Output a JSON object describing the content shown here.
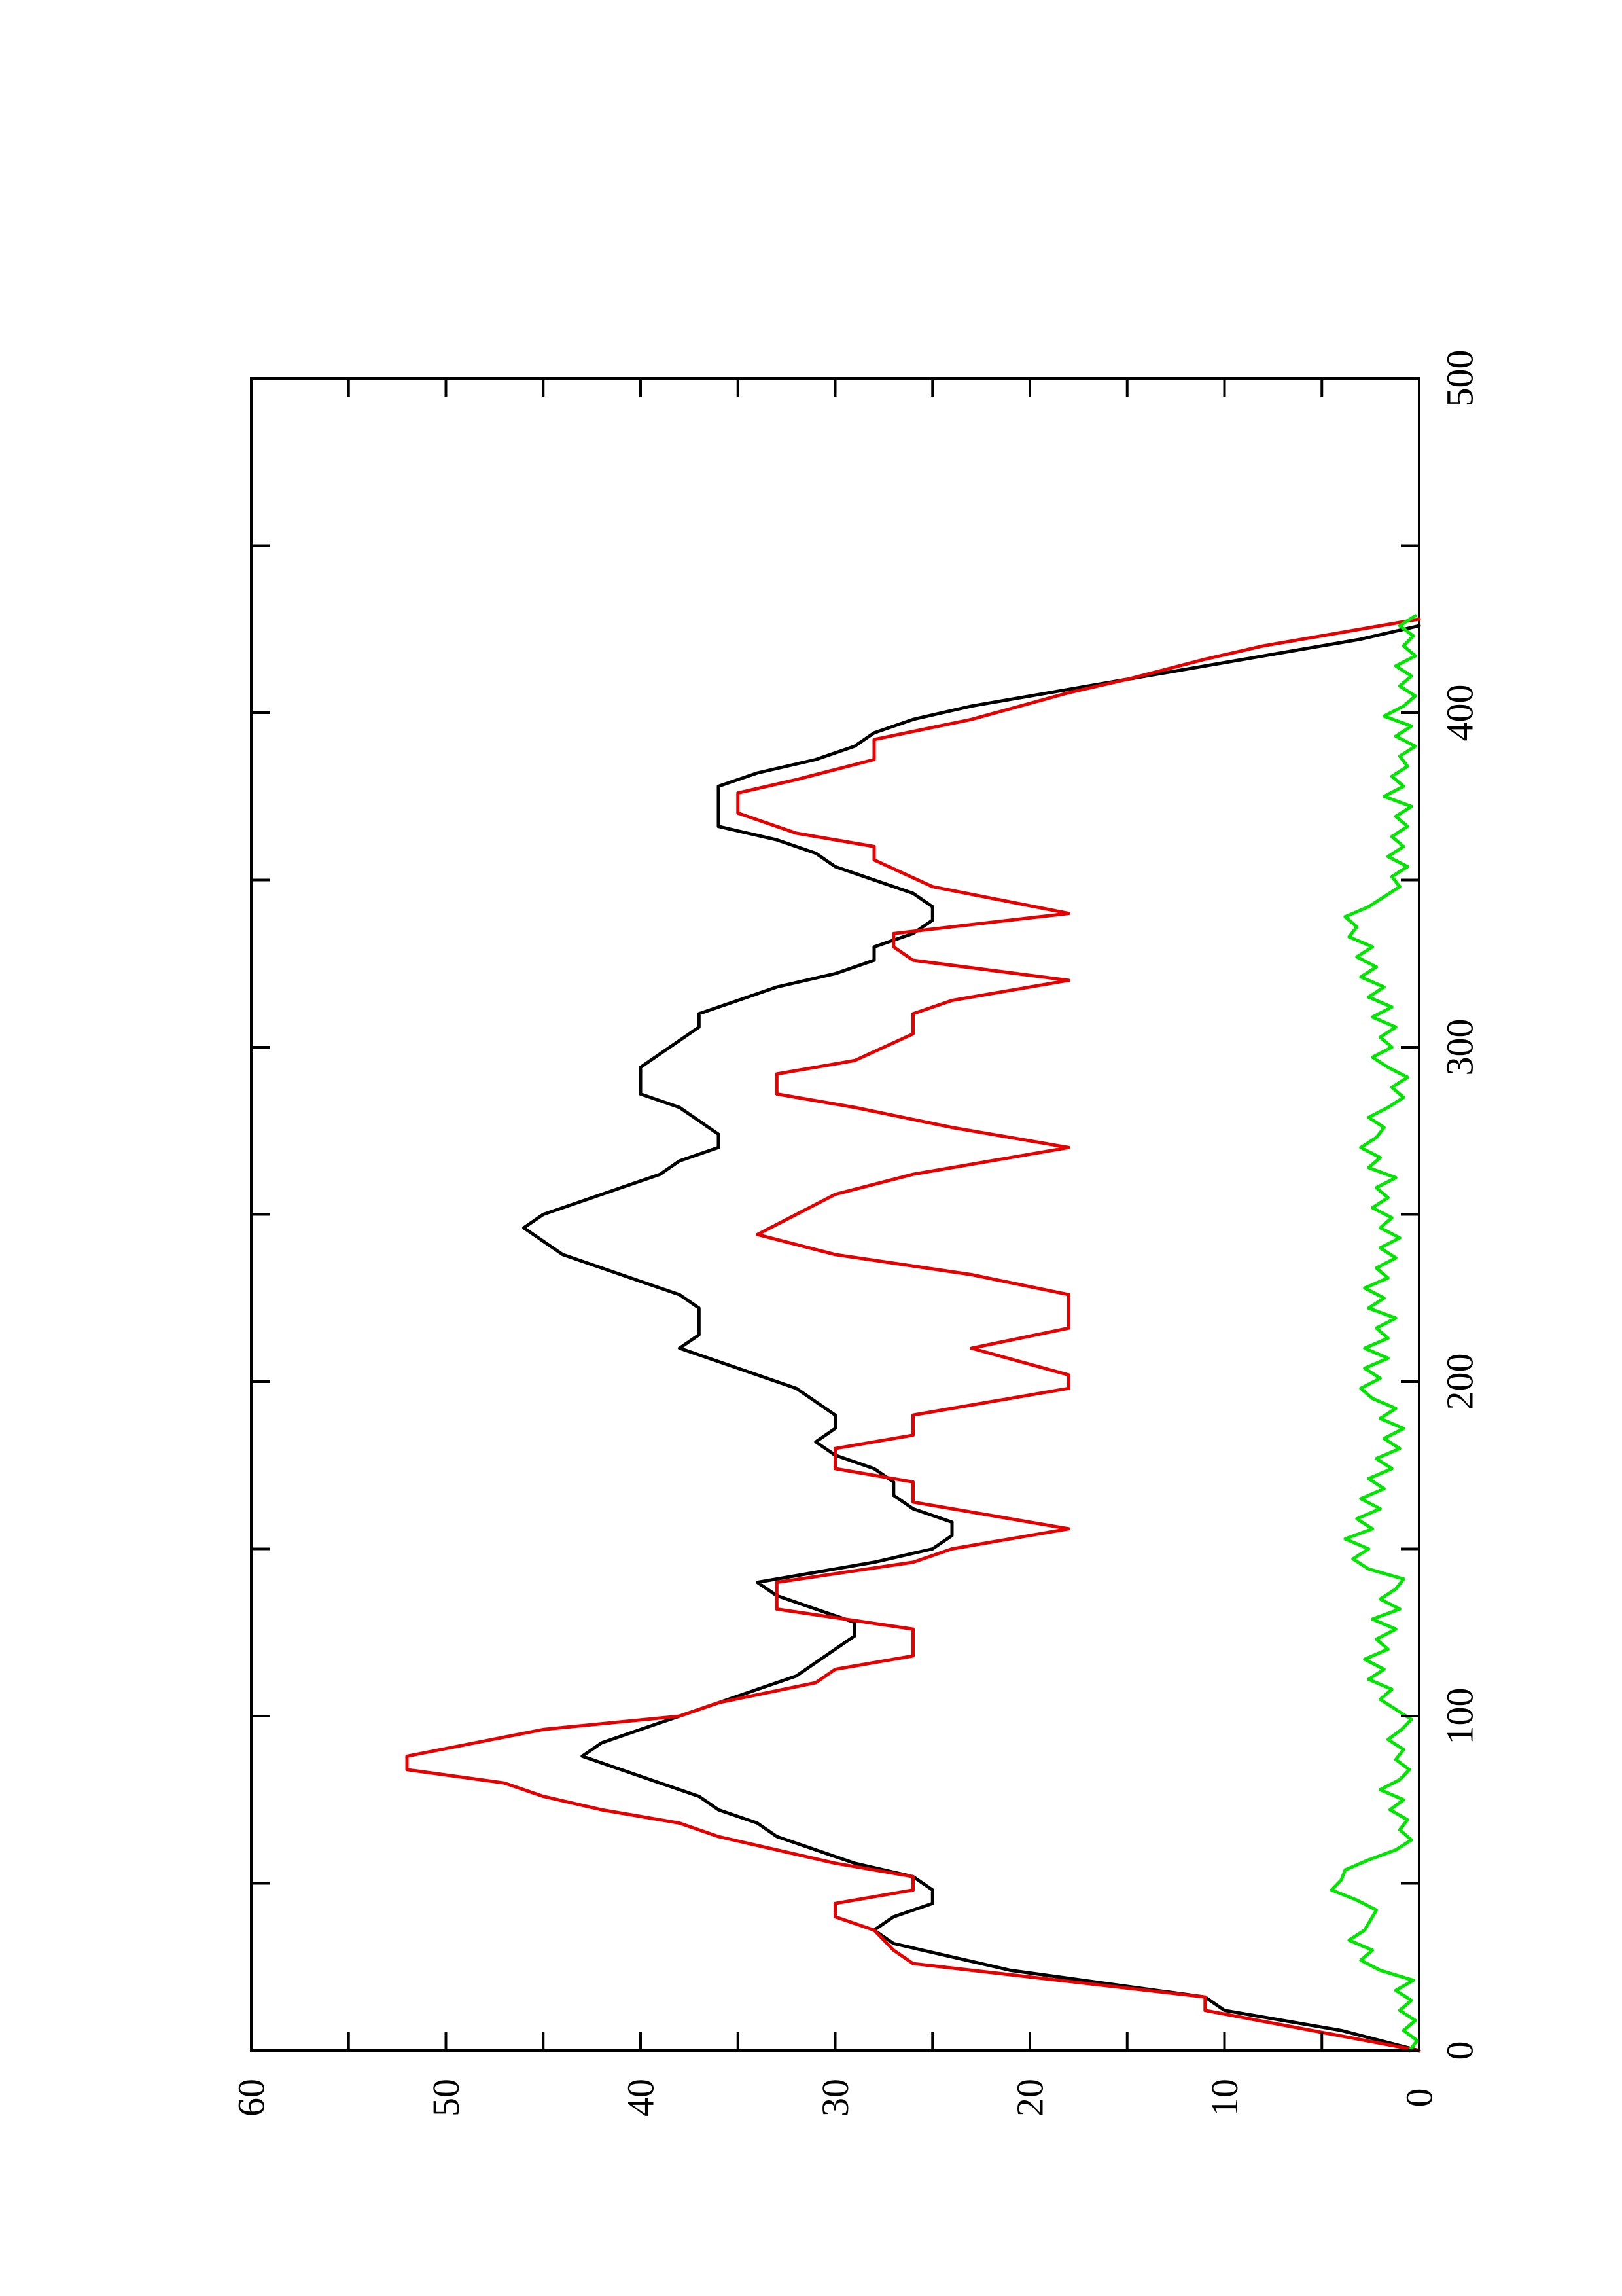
{
  "chart_data": {
    "type": "line",
    "title": "",
    "xlabel": "",
    "ylabel": "",
    "xlim": [
      0,
      500
    ],
    "ylim": [
      0,
      60
    ],
    "x_ticks": [
      0,
      100,
      200,
      300,
      400,
      500
    ],
    "y_ticks": [
      0,
      10,
      20,
      30,
      40,
      50,
      60
    ],
    "x_tick_labels": [
      "0",
      "100",
      "200",
      "300",
      "400",
      "500"
    ],
    "y_tick_labels": [
      "0",
      "10",
      "20",
      "30",
      "40",
      "50",
      "60"
    ],
    "grid": false,
    "legend": "none",
    "orientation": "page rotated 90 degrees counter-clockwise",
    "series": [
      {
        "color": "#000000",
        "points": [
          [
            0,
            0
          ],
          [
            6,
            4
          ],
          [
            12,
            10
          ],
          [
            16,
            11
          ],
          [
            20,
            16
          ],
          [
            24,
            21
          ],
          [
            28,
            24
          ],
          [
            32,
            27
          ],
          [
            36,
            28
          ],
          [
            40,
            27
          ],
          [
            44,
            25
          ],
          [
            48,
            25
          ],
          [
            52,
            26
          ],
          [
            56,
            29
          ],
          [
            60,
            31
          ],
          [
            64,
            33
          ],
          [
            68,
            34
          ],
          [
            72,
            36
          ],
          [
            76,
            37
          ],
          [
            80,
            39
          ],
          [
            84,
            41
          ],
          [
            88,
            43
          ],
          [
            92,
            42
          ],
          [
            96,
            40
          ],
          [
            100,
            38
          ],
          [
            104,
            36
          ],
          [
            108,
            34
          ],
          [
            112,
            32
          ],
          [
            116,
            31
          ],
          [
            120,
            30
          ],
          [
            124,
            29
          ],
          [
            128,
            29
          ],
          [
            132,
            31
          ],
          [
            136,
            33
          ],
          [
            140,
            34
          ],
          [
            142,
            32
          ],
          [
            146,
            28
          ],
          [
            150,
            25
          ],
          [
            154,
            24
          ],
          [
            158,
            24
          ],
          [
            162,
            26
          ],
          [
            166,
            27
          ],
          [
            170,
            27
          ],
          [
            174,
            28
          ],
          [
            178,
            30
          ],
          [
            182,
            31
          ],
          [
            186,
            30
          ],
          [
            190,
            30
          ],
          [
            194,
            31
          ],
          [
            198,
            32
          ],
          [
            202,
            34
          ],
          [
            206,
            36
          ],
          [
            210,
            38
          ],
          [
            214,
            37
          ],
          [
            218,
            37
          ],
          [
            222,
            37
          ],
          [
            226,
            38
          ],
          [
            230,
            40
          ],
          [
            234,
            42
          ],
          [
            238,
            44
          ],
          [
            242,
            45
          ],
          [
            246,
            46
          ],
          [
            250,
            45
          ],
          [
            254,
            43
          ],
          [
            258,
            41
          ],
          [
            262,
            39
          ],
          [
            266,
            38
          ],
          [
            270,
            36
          ],
          [
            274,
            36
          ],
          [
            278,
            37
          ],
          [
            282,
            38
          ],
          [
            286,
            40
          ],
          [
            290,
            40
          ],
          [
            294,
            40
          ],
          [
            298,
            39
          ],
          [
            302,
            38
          ],
          [
            306,
            37
          ],
          [
            310,
            37
          ],
          [
            314,
            35
          ],
          [
            318,
            33
          ],
          [
            322,
            30
          ],
          [
            326,
            28
          ],
          [
            330,
            28
          ],
          [
            334,
            26
          ],
          [
            338,
            25
          ],
          [
            342,
            25
          ],
          [
            346,
            26
          ],
          [
            350,
            28
          ],
          [
            354,
            30
          ],
          [
            358,
            31
          ],
          [
            362,
            33
          ],
          [
            366,
            36
          ],
          [
            370,
            36
          ],
          [
            374,
            36
          ],
          [
            378,
            36
          ],
          [
            382,
            34
          ],
          [
            386,
            31
          ],
          [
            390,
            29
          ],
          [
            394,
            28
          ],
          [
            398,
            26
          ],
          [
            402,
            23
          ],
          [
            406,
            19
          ],
          [
            410,
            15
          ],
          [
            414,
            11
          ],
          [
            418,
            7
          ],
          [
            422,
            3
          ],
          [
            426,
            0
          ]
        ]
      },
      {
        "color": "#e60000",
        "points": [
          [
            0,
            0
          ],
          [
            12,
            11
          ],
          [
            16,
            11
          ],
          [
            26,
            26
          ],
          [
            30,
            27
          ],
          [
            36,
            28
          ],
          [
            40,
            30
          ],
          [
            44,
            30
          ],
          [
            48,
            26
          ],
          [
            52,
            26
          ],
          [
            56,
            30
          ],
          [
            60,
            33
          ],
          [
            64,
            36
          ],
          [
            68,
            38
          ],
          [
            72,
            42
          ],
          [
            76,
            45
          ],
          [
            80,
            47
          ],
          [
            84,
            52
          ],
          [
            88,
            52
          ],
          [
            96,
            45
          ],
          [
            100,
            38
          ],
          [
            104,
            36
          ],
          [
            110,
            31
          ],
          [
            114,
            30
          ],
          [
            118,
            26
          ],
          [
            126,
            26
          ],
          [
            132,
            33
          ],
          [
            140,
            33
          ],
          [
            146,
            26
          ],
          [
            150,
            24
          ],
          [
            156,
            18
          ],
          [
            160,
            22
          ],
          [
            164,
            26
          ],
          [
            170,
            26
          ],
          [
            174,
            30
          ],
          [
            180,
            30
          ],
          [
            184,
            26
          ],
          [
            190,
            26
          ],
          [
            198,
            18
          ],
          [
            202,
            18
          ],
          [
            210,
            23
          ],
          [
            216,
            18
          ],
          [
            226,
            18
          ],
          [
            232,
            23
          ],
          [
            238,
            30
          ],
          [
            244,
            34
          ],
          [
            250,
            32
          ],
          [
            256,
            30
          ],
          [
            262,
            26
          ],
          [
            270,
            18
          ],
          [
            276,
            24
          ],
          [
            282,
            29
          ],
          [
            286,
            33
          ],
          [
            292,
            33
          ],
          [
            296,
            29
          ],
          [
            304,
            26
          ],
          [
            310,
            26
          ],
          [
            314,
            24
          ],
          [
            320,
            18
          ],
          [
            326,
            26
          ],
          [
            330,
            27
          ],
          [
            334,
            27
          ],
          [
            340,
            18
          ],
          [
            348,
            25
          ],
          [
            356,
            28
          ],
          [
            360,
            28
          ],
          [
            364,
            32
          ],
          [
            370,
            35
          ],
          [
            376,
            35
          ],
          [
            380,
            32
          ],
          [
            386,
            28
          ],
          [
            392,
            28
          ],
          [
            398,
            23
          ],
          [
            406,
            18
          ],
          [
            410,
            15
          ],
          [
            416,
            11
          ],
          [
            420,
            8
          ],
          [
            424,
            4
          ],
          [
            428,
            0
          ]
        ]
      },
      {
        "color": "#00e600",
        "points": [
          [
            0,
            0.5
          ],
          [
            3,
            0.1
          ],
          [
            6,
            0.8
          ],
          [
            9,
            0.2
          ],
          [
            12,
            1.0
          ],
          [
            15,
            0.4
          ],
          [
            18,
            1.2
          ],
          [
            21,
            0.3
          ],
          [
            24,
            2.0
          ],
          [
            27,
            3.0
          ],
          [
            30,
            2.4
          ],
          [
            33,
            3.6
          ],
          [
            36,
            2.8
          ],
          [
            39,
            2.5
          ],
          [
            42,
            2.2
          ],
          [
            45,
            3.2
          ],
          [
            48,
            4.5
          ],
          [
            51,
            4.0
          ],
          [
            54,
            3.8
          ],
          [
            57,
            2.6
          ],
          [
            60,
            1.2
          ],
          [
            63,
            0.4
          ],
          [
            66,
            1.0
          ],
          [
            69,
            0.6
          ],
          [
            72,
            1.5
          ],
          [
            75,
            0.8
          ],
          [
            78,
            2.0
          ],
          [
            81,
            1.0
          ],
          [
            84,
            0.5
          ],
          [
            87,
            1.2
          ],
          [
            90,
            0.8
          ],
          [
            93,
            1.6
          ],
          [
            96,
            0.9
          ],
          [
            99,
            0.4
          ],
          [
            102,
            1.2
          ],
          [
            105,
            2.0
          ],
          [
            108,
            1.4
          ],
          [
            111,
            2.6
          ],
          [
            114,
            1.8
          ],
          [
            117,
            2.8
          ],
          [
            120,
            1.6
          ],
          [
            123,
            2.2
          ],
          [
            126,
            1.2
          ],
          [
            129,
            2.4
          ],
          [
            132,
            1.0
          ],
          [
            135,
            2.0
          ],
          [
            138,
            1.2
          ],
          [
            141,
            0.8
          ],
          [
            144,
            2.6
          ],
          [
            147,
            3.4
          ],
          [
            150,
            2.6
          ],
          [
            153,
            3.8
          ],
          [
            156,
            2.4
          ],
          [
            159,
            3.2
          ],
          [
            162,
            2.0
          ],
          [
            165,
            3.0
          ],
          [
            168,
            1.8
          ],
          [
            171,
            2.6
          ],
          [
            174,
            1.4
          ],
          [
            177,
            2.2
          ],
          [
            180,
            1.0
          ],
          [
            183,
            1.8
          ],
          [
            186,
            0.8
          ],
          [
            189,
            2.0
          ],
          [
            192,
            1.2
          ],
          [
            195,
            2.4
          ],
          [
            198,
            3.0
          ],
          [
            201,
            2.0
          ],
          [
            204,
            2.8
          ],
          [
            207,
            1.6
          ],
          [
            210,
            2.8
          ],
          [
            213,
            1.6
          ],
          [
            216,
            2.2
          ],
          [
            219,
            1.2
          ],
          [
            222,
            2.6
          ],
          [
            225,
            1.8
          ],
          [
            228,
            2.8
          ],
          [
            231,
            1.6
          ],
          [
            234,
            2.2
          ],
          [
            237,
            1.2
          ],
          [
            240,
            2.0
          ],
          [
            243,
            1.0
          ],
          [
            246,
            2.0
          ],
          [
            249,
            1.4
          ],
          [
            252,
            2.4
          ],
          [
            255,
            1.6
          ],
          [
            258,
            2.2
          ],
          [
            261,
            1.2
          ],
          [
            264,
            2.6
          ],
          [
            267,
            2.0
          ],
          [
            270,
            3.0
          ],
          [
            273,
            2.2
          ],
          [
            276,
            1.8
          ],
          [
            279,
            2.6
          ],
          [
            282,
            1.6
          ],
          [
            285,
            0.8
          ],
          [
            288,
            1.4
          ],
          [
            291,
            0.6
          ],
          [
            294,
            1.6
          ],
          [
            297,
            2.4
          ],
          [
            300,
            1.4
          ],
          [
            303,
            2.0
          ],
          [
            306,
            1.2
          ],
          [
            309,
            2.4
          ],
          [
            312,
            1.4
          ],
          [
            315,
            2.6
          ],
          [
            318,
            1.8
          ],
          [
            321,
            3.0
          ],
          [
            324,
            2.2
          ],
          [
            327,
            3.2
          ],
          [
            330,
            2.4
          ],
          [
            333,
            3.6
          ],
          [
            336,
            3.2
          ],
          [
            339,
            3.8
          ],
          [
            342,
            2.6
          ],
          [
            345,
            1.8
          ],
          [
            348,
            1.0
          ],
          [
            351,
            1.4
          ],
          [
            354,
            0.6
          ],
          [
            357,
            1.6
          ],
          [
            360,
            0.8
          ],
          [
            363,
            1.4
          ],
          [
            366,
            0.6
          ],
          [
            369,
            1.2
          ],
          [
            372,
            0.4
          ],
          [
            375,
            1.8
          ],
          [
            378,
            0.8
          ],
          [
            381,
            1.4
          ],
          [
            384,
            0.6
          ],
          [
            387,
            1.0
          ],
          [
            390,
            0.2
          ],
          [
            393,
            1.2
          ],
          [
            396,
            0.4
          ],
          [
            399,
            1.8
          ],
          [
            402,
            0.8
          ],
          [
            405,
            0.2
          ],
          [
            408,
            1.0
          ],
          [
            411,
            0.4
          ],
          [
            414,
            1.2
          ],
          [
            417,
            0.2
          ],
          [
            420,
            0.8
          ],
          [
            423,
            0.3
          ],
          [
            426,
            1.0
          ],
          [
            429,
            0.2
          ]
        ]
      }
    ]
  }
}
